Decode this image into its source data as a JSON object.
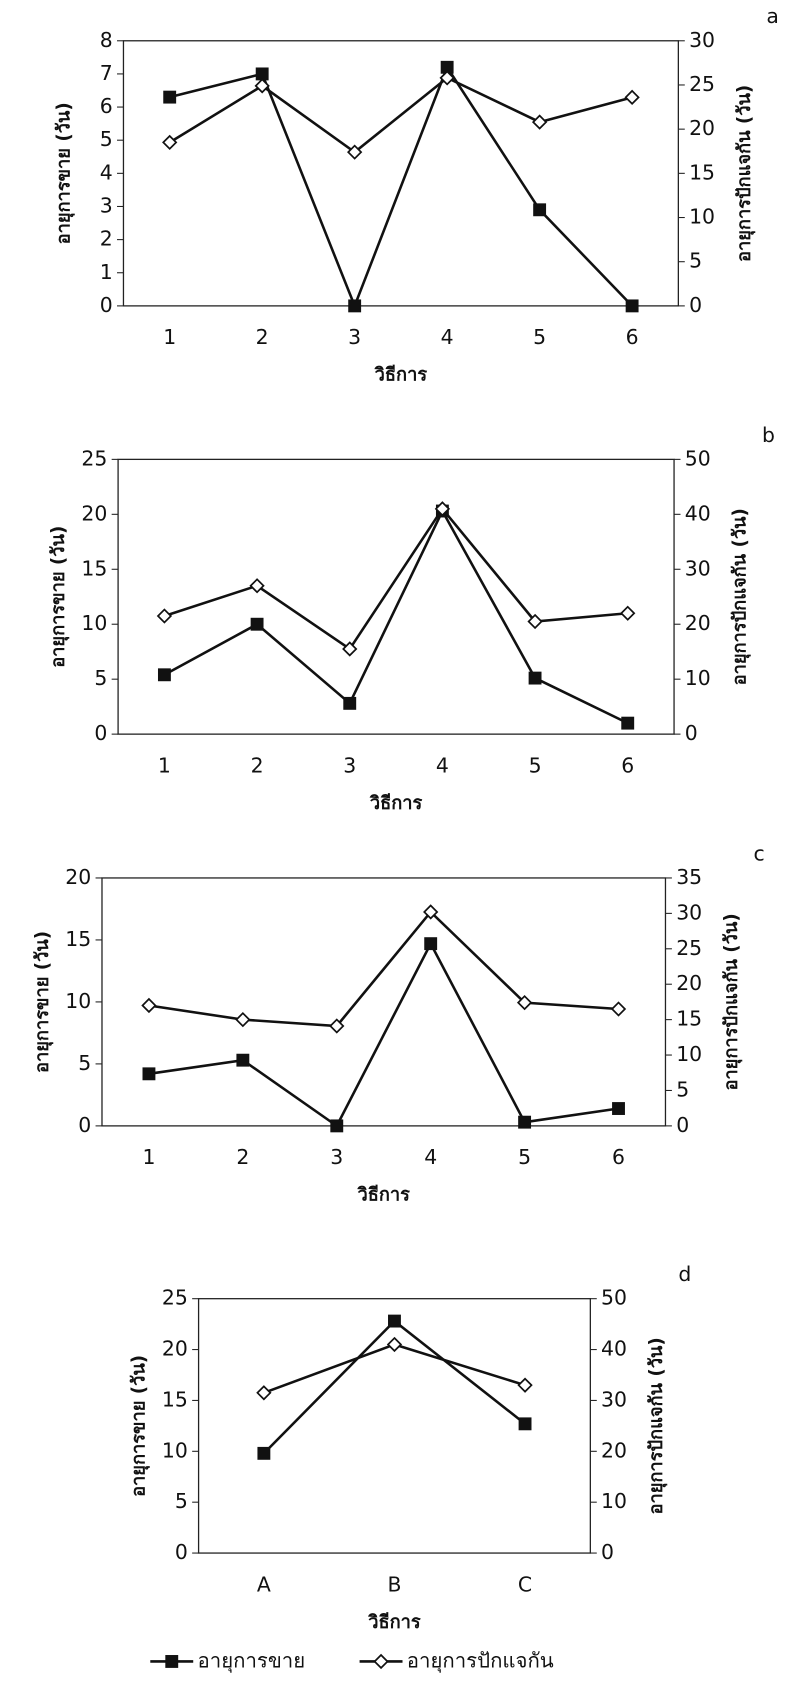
{
  "chart_data": [
    {
      "type": "line",
      "label": "a",
      "xlabel": "วิธีการ",
      "ylabel": "อายุการขาย (วัน)",
      "y2label": "อายุการปักแจกัน (วัน)",
      "categories": [
        "1",
        "2",
        "3",
        "4",
        "5",
        "6"
      ],
      "ylim": [
        0,
        8
      ],
      "yticks": [
        0,
        1,
        2,
        3,
        4,
        5,
        6,
        7,
        8
      ],
      "y2lim": [
        0,
        30
      ],
      "y2ticks": [
        0,
        5,
        10,
        15,
        20,
        25,
        30
      ],
      "series": [
        {
          "color": "#111111",
          "marker": "square",
          "values": [
            6.3,
            7.0,
            0,
            7.2,
            2.9,
            0
          ]
        },
        {
          "color": "#111111",
          "marker": "diamond",
          "axis": "y2",
          "values": [
            18.5,
            24.9,
            17.4,
            25.8,
            20.8,
            23.6
          ]
        }
      ]
    },
    {
      "type": "line",
      "label": "b",
      "xlabel": "วิธีการ",
      "ylabel": "อายุการขาย (วัน)",
      "y2label": "อายุการปักแจกัน (วัน)",
      "categories": [
        "1",
        "2",
        "3",
        "4",
        "5",
        "6"
      ],
      "ylim": [
        0,
        25
      ],
      "yticks": [
        0,
        5,
        10,
        15,
        20,
        25
      ],
      "y2lim": [
        0,
        50
      ],
      "y2ticks": [
        0,
        10,
        20,
        30,
        40,
        50
      ],
      "series": [
        {
          "color": "#111111",
          "marker": "square",
          "values": [
            5.4,
            10,
            2.8,
            20.3,
            5.1,
            1.0
          ]
        },
        {
          "color": "#111111",
          "marker": "diamond",
          "axis": "y2",
          "values": [
            21.5,
            27,
            15.5,
            41,
            20.5,
            22
          ]
        }
      ]
    },
    {
      "type": "line",
      "label": "c",
      "xlabel": "วิธีการ",
      "ylabel": "อายุการขาย (วัน)",
      "y2label": "อายุการปักแจกัน (วัน)",
      "categories": [
        "1",
        "2",
        "3",
        "4",
        "5",
        "6"
      ],
      "ylim": [
        0,
        20
      ],
      "yticks": [
        0,
        5,
        10,
        15,
        20
      ],
      "y2lim": [
        0,
        35
      ],
      "y2ticks": [
        0,
        5,
        10,
        15,
        20,
        25,
        30,
        35
      ],
      "series": [
        {
          "color": "#111111",
          "marker": "square",
          "values": [
            4.2,
            5.3,
            0,
            14.7,
            0.3,
            1.4
          ]
        },
        {
          "color": "#111111",
          "marker": "diamond",
          "axis": "y2",
          "values": [
            17,
            15,
            14.1,
            30.2,
            17.4,
            16.5
          ]
        }
      ]
    },
    {
      "type": "line",
      "label": "d",
      "xlabel": "วิธีการ",
      "ylabel": "อายุการขาย (วัน)",
      "y2label": "อายุการปักแจกัน (วัน)",
      "categories": [
        "A",
        "B",
        "C"
      ],
      "ylim": [
        0,
        25
      ],
      "yticks": [
        0,
        5,
        10,
        15,
        20,
        25
      ],
      "y2lim": [
        0,
        50
      ],
      "y2ticks": [
        0,
        10,
        20,
        30,
        40,
        50
      ],
      "series": [
        {
          "name": "อายุการขาย",
          "color": "#111111",
          "marker": "square",
          "values": [
            9.8,
            22.8,
            12.7
          ]
        },
        {
          "name": "อายุการปักแจกัน",
          "color": "#111111",
          "marker": "diamond",
          "axis": "y2",
          "values": [
            31.5,
            41,
            33
          ]
        }
      ]
    }
  ]
}
